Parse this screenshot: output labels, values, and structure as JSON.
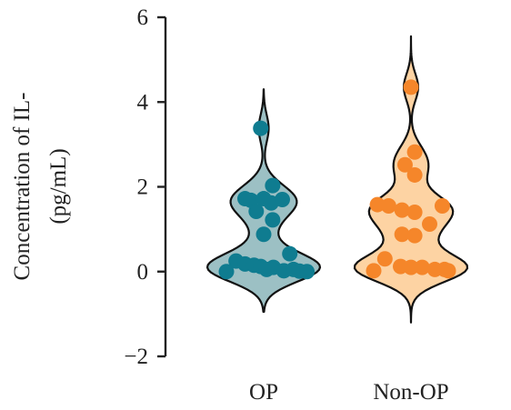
{
  "chart_data": {
    "type": "violin",
    "ylabel": [
      "Concentration of IL-",
      "(pg/mL)"
    ],
    "categories": [
      "OP",
      "Non-OP"
    ],
    "ylim": [
      -2,
      6
    ],
    "yticks": [
      -2,
      0,
      2,
      4,
      6
    ],
    "ytick_labels": [
      "−2",
      "0",
      "2",
      "4",
      "6"
    ],
    "series": [
      {
        "category": "OP",
        "fill": "#9cc0c4",
        "dot_color": "#0f7c90",
        "range": [
          -0.95,
          4.3
        ],
        "points": [
          {
            "y": 3.38,
            "offset": -0.04
          },
          {
            "y": 2.03,
            "offset": 0.12
          },
          {
            "y": 1.72,
            "offset": -0.25
          },
          {
            "y": 1.68,
            "offset": -0.17
          },
          {
            "y": 1.72,
            "offset": 0.0
          },
          {
            "y": 1.62,
            "offset": 0.1
          },
          {
            "y": 1.7,
            "offset": 0.25
          },
          {
            "y": 1.42,
            "offset": -0.1
          },
          {
            "y": 1.22,
            "offset": 0.12
          },
          {
            "y": 0.88,
            "offset": 0.0
          },
          {
            "y": 0.42,
            "offset": 0.35
          },
          {
            "y": 0.25,
            "offset": -0.37
          },
          {
            "y": 0.18,
            "offset": -0.25
          },
          {
            "y": 0.15,
            "offset": -0.13
          },
          {
            "y": 0.12,
            "offset": -0.04
          },
          {
            "y": 0.1,
            "offset": 0.13
          },
          {
            "y": 0.05,
            "offset": 0.04
          },
          {
            "y": 0.02,
            "offset": 0.27
          },
          {
            "y": 0.05,
            "offset": 0.4
          },
          {
            "y": 0.01,
            "offset": 0.48
          },
          {
            "y": 0.0,
            "offset": -0.5
          },
          {
            "y": 0.0,
            "offset": 0.58
          }
        ]
      },
      {
        "category": "Non-OP",
        "fill": "#fdd3a3",
        "dot_color": "#f5862a",
        "range": [
          -1.2,
          5.55
        ],
        "points": [
          {
            "y": 4.35,
            "offset": 0.0
          },
          {
            "y": 2.82,
            "offset": 0.05
          },
          {
            "y": 2.52,
            "offset": -0.08
          },
          {
            "y": 2.28,
            "offset": 0.05
          },
          {
            "y": 1.58,
            "offset": -0.45
          },
          {
            "y": 1.55,
            "offset": -0.3
          },
          {
            "y": 1.55,
            "offset": 0.42
          },
          {
            "y": 1.45,
            "offset": -0.12
          },
          {
            "y": 1.4,
            "offset": 0.05
          },
          {
            "y": 1.12,
            "offset": 0.25
          },
          {
            "y": 0.88,
            "offset": -0.12
          },
          {
            "y": 0.85,
            "offset": 0.05
          },
          {
            "y": 0.3,
            "offset": -0.35
          },
          {
            "y": 0.12,
            "offset": -0.14
          },
          {
            "y": 0.1,
            "offset": 0.0
          },
          {
            "y": 0.1,
            "offset": 0.15
          },
          {
            "y": 0.05,
            "offset": 0.32
          },
          {
            "y": 0.02,
            "offset": -0.5
          },
          {
            "y": 0.02,
            "offset": 0.5
          },
          {
            "y": 0.05,
            "offset": 0.45
          }
        ]
      }
    ],
    "grid": false,
    "legend": "none"
  }
}
